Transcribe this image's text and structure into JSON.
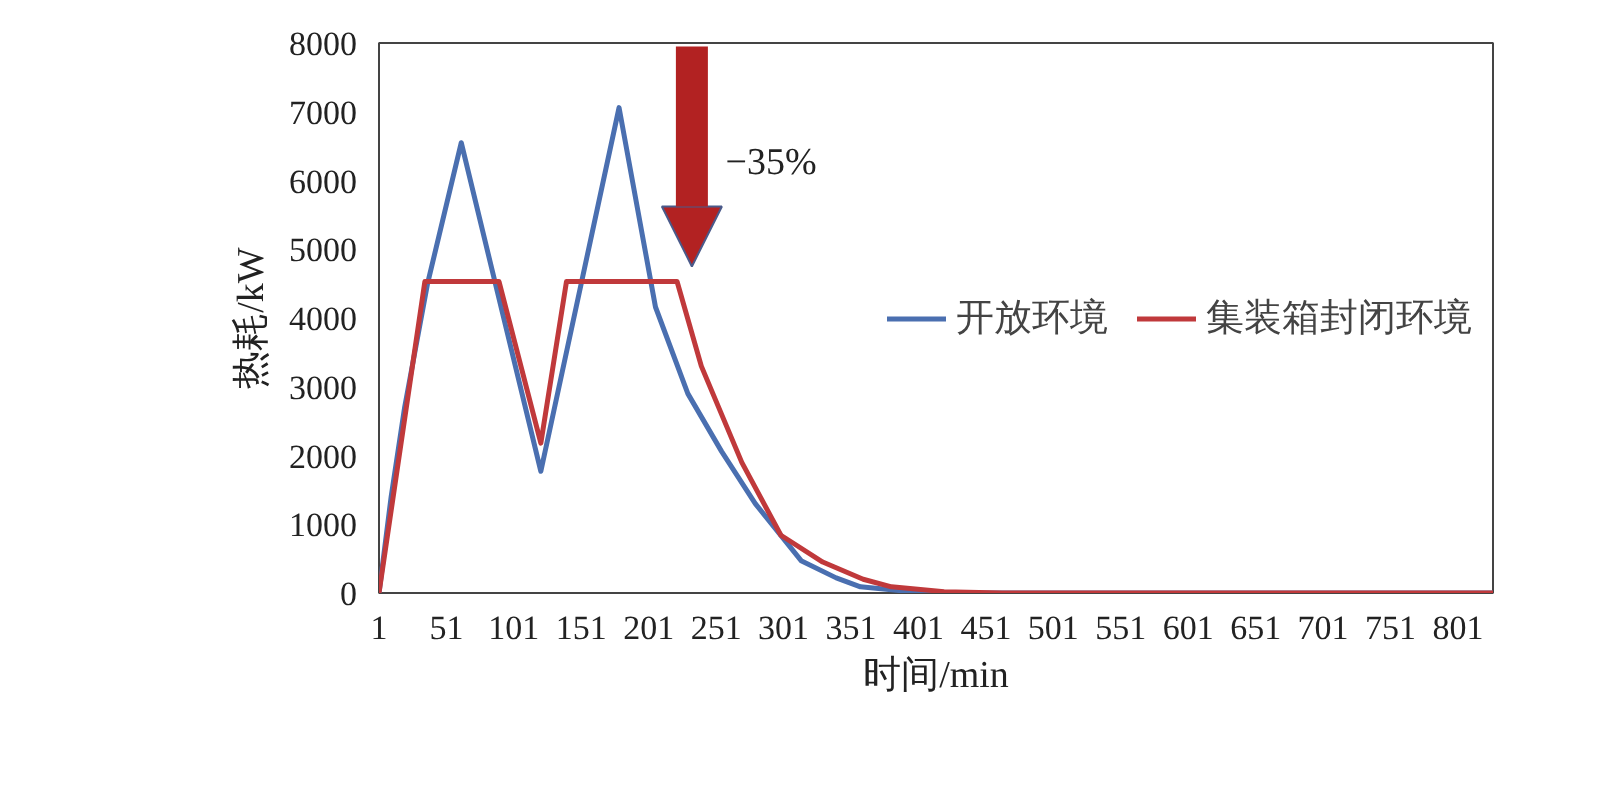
{
  "chart_data": {
    "type": "line",
    "xlabel": "时间/min",
    "ylabel": "热耗/kW",
    "xlim": [
      1,
      827
    ],
    "xticks": [
      1,
      51,
      101,
      151,
      201,
      251,
      301,
      351,
      401,
      451,
      501,
      551,
      601,
      651,
      701,
      751,
      801
    ],
    "ylim": [
      0,
      8000
    ],
    "yticks": [
      0,
      1000,
      2000,
      3000,
      4000,
      5000,
      6000,
      7000,
      8000
    ],
    "grid": false,
    "legend": "right",
    "marker": "none",
    "line_style": "solid",
    "annotations": [
      "−35%"
    ],
    "series": [
      {
        "name": "开放环境",
        "color": "#4a6fb0",
        "x": [
          1,
          10,
          20,
          37,
          62,
          121,
          179,
          206,
          230,
          255,
          280,
          314,
          340,
          358,
          390,
          418,
          470,
          827
        ],
        "values": [
          0,
          1400,
          2700,
          4500,
          6550,
          1770,
          7060,
          4160,
          2900,
          2060,
          1300,
          470,
          220,
          90,
          30,
          0,
          0,
          0
        ]
      },
      {
        "name": "集装箱封闭环境",
        "color": "#c0393b",
        "x": [
          1,
          35,
          90,
          121,
          140,
          222,
          240,
          270,
          299,
          330,
          360,
          381,
          420,
          463,
          827
        ],
        "values": [
          0,
          4530,
          4530,
          2180,
          4530,
          4530,
          3300,
          1900,
          840,
          450,
          200,
          90,
          20,
          0,
          0
        ]
      }
    ]
  }
}
